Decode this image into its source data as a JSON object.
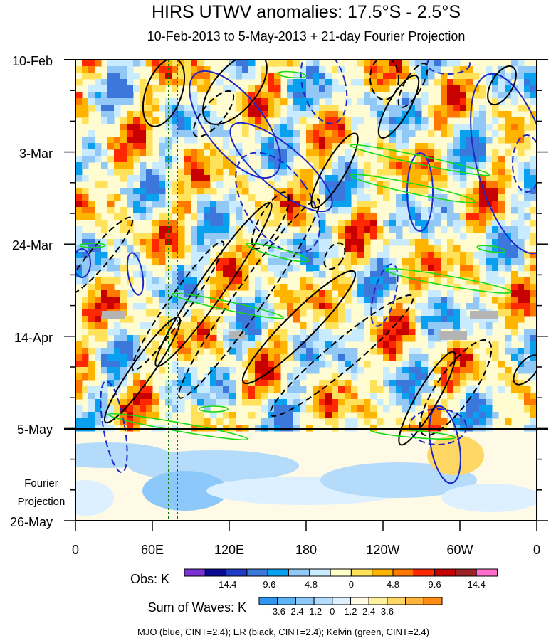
{
  "chart_data": {
    "type": "heatmap",
    "title": "HIRS UTWV anomalies: 17.5°S - 2.5°S",
    "subtitle": "10-Feb-2013 to 5-May-2013 + 21-day Fourier Projection",
    "y_ticks": [
      "10-Feb",
      "3-Mar",
      "24-Mar",
      "14-Apr",
      "5-May",
      "26-May"
    ],
    "x_ticks": [
      "0",
      "60E",
      "120E",
      "180",
      "120W",
      "60W",
      "0"
    ],
    "projection_label_line1": "Fourier",
    "projection_label_line2": "Projection",
    "obs_date": "5-May-2013",
    "obs_legend": {
      "label": "Obs: K",
      "colors": [
        "#7a32d6",
        "#0a0a96",
        "#1e3cc8",
        "#3c78dc",
        "#0aa0f0",
        "#91c8f5",
        "#c8ebff",
        "#ffffc8",
        "#ffe15a",
        "#ffb400",
        "#ff7800",
        "#ff2800",
        "#c80000",
        "#9b2323",
        "#ff6ec8"
      ],
      "tick_labels": [
        "-14.4",
        "-9.6",
        "-4.8",
        "0",
        "4.8",
        "9.6",
        "14.4"
      ]
    },
    "waves_legend": {
      "label": "Sum of Waves: K",
      "colors": [
        "#2e96f0",
        "#5ab4f5",
        "#8cc8fa",
        "#b4dcfa",
        "#dcf0ff",
        "#fffae6",
        "#fff0a0",
        "#ffd764",
        "#ffb43c",
        "#ff8c14"
      ],
      "tick_labels": [
        "-3.6",
        "-2.4",
        "-1.2",
        "0",
        "1.2",
        "2.4",
        "3.6"
      ]
    },
    "footer_text": "MJO (blue, CINT=2.4); ER (black, CINT=2.4); Kelvin (green, CINT=2.4)",
    "contours": {
      "mjo_color": "#1e28c8",
      "er_color": "#000000",
      "kelvin_color": "#14dc14",
      "cint": 2.4
    }
  }
}
